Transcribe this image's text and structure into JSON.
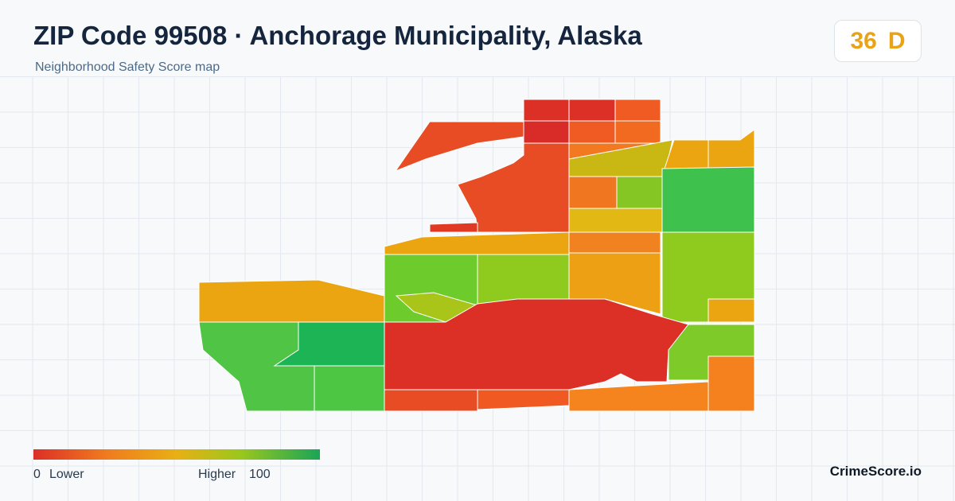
{
  "header": {
    "title": "ZIP Code 99508 · Anchorage Municipality, Alaska",
    "subtitle": "Neighborhood Safety Score map"
  },
  "score": {
    "value": "36",
    "grade": "D"
  },
  "legend": {
    "min": "0",
    "min_label": "Lower",
    "max_label": "Higher",
    "max": "100"
  },
  "footer": {
    "brand": "CrimeScore.io"
  }
}
